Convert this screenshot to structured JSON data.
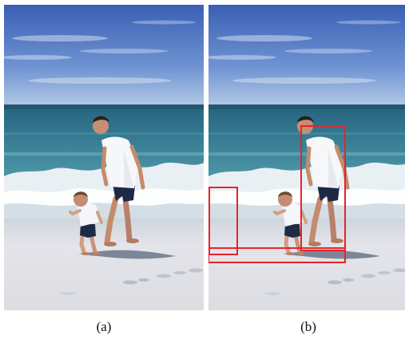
{
  "figure": {
    "panels": [
      {
        "id": "a",
        "caption": "(a)",
        "shows_detection_boxes": false
      },
      {
        "id": "b",
        "caption": "(b)",
        "shows_detection_boxes": true
      }
    ],
    "box_color": "#e8222a",
    "scene_colors": {
      "sky_top": "#3f64b8",
      "sky_bottom": "#a9c3e6",
      "sea": "#2f6f8c",
      "foam": "#eef3f7",
      "sand": "#e2e2e6",
      "shadow": "#6a7486"
    }
  }
}
